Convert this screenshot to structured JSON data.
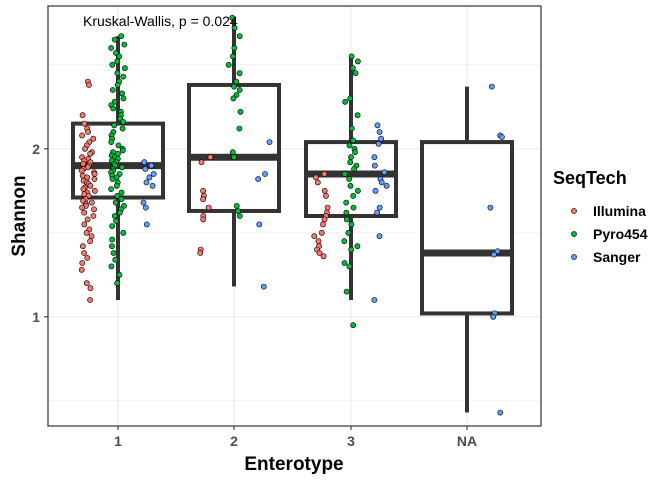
{
  "chart_data": {
    "type": "box",
    "title": "",
    "xlabel": "Enterotype",
    "ylabel": "Shannon",
    "annotation": "Kruskal-Wallis, p = 0.024",
    "categories": [
      "1",
      "2",
      "3",
      "NA"
    ],
    "ylim": [
      0.35,
      2.85
    ],
    "yticks": [
      1,
      2
    ],
    "grid": true,
    "legend": {
      "title": "SeqTech",
      "position": "right",
      "entries": [
        {
          "name": "Illumina",
          "color": "#f8766d"
        },
        {
          "name": "Pyro454",
          "color": "#00ba38"
        },
        {
          "name": "Sanger",
          "color": "#619cff"
        }
      ]
    },
    "boxes": [
      {
        "category": "1",
        "min": 1.1,
        "q1": 1.71,
        "median": 1.9,
        "q3": 2.15,
        "max": 2.67
      },
      {
        "category": "2",
        "min": 1.18,
        "q1": 1.63,
        "median": 1.95,
        "q3": 2.38,
        "max": 2.78
      },
      {
        "category": "3",
        "min": 1.1,
        "q1": 1.6,
        "median": 1.85,
        "q3": 2.04,
        "max": 2.55
      },
      {
        "category": "NA",
        "min": 0.43,
        "q1": 1.02,
        "median": 1.38,
        "q3": 2.04,
        "max": 2.37
      }
    ],
    "series": [
      {
        "name": "Illumina",
        "points": [
          [
            1,
            2.4
          ],
          [
            1,
            2.38
          ],
          [
            1,
            2.2
          ],
          [
            1,
            2.15
          ],
          [
            1,
            2.12
          ],
          [
            1,
            2.1
          ],
          [
            1,
            2.08
          ],
          [
            1,
            2.06
          ],
          [
            1,
            2.04
          ],
          [
            1,
            2.02
          ],
          [
            1,
            2.0
          ],
          [
            1,
            1.98
          ],
          [
            1,
            1.97
          ],
          [
            1,
            1.95
          ],
          [
            1,
            1.94
          ],
          [
            1,
            1.93
          ],
          [
            1,
            1.92
          ],
          [
            1,
            1.91
          ],
          [
            1,
            1.9
          ],
          [
            1,
            1.89
          ],
          [
            1,
            1.88
          ],
          [
            1,
            1.87
          ],
          [
            1,
            1.86
          ],
          [
            1,
            1.85
          ],
          [
            1,
            1.84
          ],
          [
            1,
            1.83
          ],
          [
            1,
            1.82
          ],
          [
            1,
            1.81
          ],
          [
            1,
            1.8
          ],
          [
            1,
            1.79
          ],
          [
            1,
            1.78
          ],
          [
            1,
            1.77
          ],
          [
            1,
            1.76
          ],
          [
            1,
            1.75
          ],
          [
            1,
            1.74
          ],
          [
            1,
            1.73
          ],
          [
            1,
            1.72
          ],
          [
            1,
            1.7
          ],
          [
            1,
            1.69
          ],
          [
            1,
            1.68
          ],
          [
            1,
            1.67
          ],
          [
            1,
            1.66
          ],
          [
            1,
            1.65
          ],
          [
            1,
            1.64
          ],
          [
            1,
            1.62
          ],
          [
            1,
            1.6
          ],
          [
            1,
            1.58
          ],
          [
            1,
            1.55
          ],
          [
            1,
            1.52
          ],
          [
            1,
            1.5
          ],
          [
            1,
            1.48
          ],
          [
            1,
            1.45
          ],
          [
            1,
            1.42
          ],
          [
            1,
            1.38
          ],
          [
            1,
            1.35
          ],
          [
            1,
            1.32
          ],
          [
            1,
            1.28
          ],
          [
            1,
            1.2
          ],
          [
            1,
            1.17
          ],
          [
            1,
            1.1
          ],
          [
            2,
            1.95
          ],
          [
            2,
            1.92
          ],
          [
            2,
            1.75
          ],
          [
            2,
            1.72
          ],
          [
            2,
            1.7
          ],
          [
            2,
            1.65
          ],
          [
            2,
            1.6
          ],
          [
            2,
            1.58
          ],
          [
            2,
            1.4
          ],
          [
            2,
            1.38
          ],
          [
            3,
            1.85
          ],
          [
            3,
            1.83
          ],
          [
            3,
            1.8
          ],
          [
            3,
            1.75
          ],
          [
            3,
            1.72
          ],
          [
            3,
            1.65
          ],
          [
            3,
            1.62
          ],
          [
            3,
            1.6
          ],
          [
            3,
            1.58
          ],
          [
            3,
            1.55
          ],
          [
            3,
            1.5
          ],
          [
            3,
            1.48
          ],
          [
            3,
            1.45
          ],
          [
            3,
            1.42
          ],
          [
            3,
            1.4
          ],
          [
            3,
            1.38
          ],
          [
            3,
            1.36
          ]
        ]
      },
      {
        "name": "Pyro454",
        "points": [
          [
            1,
            2.67
          ],
          [
            1,
            2.65
          ],
          [
            1,
            2.62
          ],
          [
            1,
            2.6
          ],
          [
            1,
            2.57
          ],
          [
            1,
            2.55
          ],
          [
            1,
            2.52
          ],
          [
            1,
            2.5
          ],
          [
            1,
            2.48
          ],
          [
            1,
            2.45
          ],
          [
            1,
            2.43
          ],
          [
            1,
            2.4
          ],
          [
            1,
            2.38
          ],
          [
            1,
            2.35
          ],
          [
            1,
            2.33
          ],
          [
            1,
            2.3
          ],
          [
            1,
            2.28
          ],
          [
            1,
            2.26
          ],
          [
            1,
            2.24
          ],
          [
            1,
            2.22
          ],
          [
            1,
            2.2
          ],
          [
            1,
            2.18
          ],
          [
            1,
            2.16
          ],
          [
            1,
            2.14
          ],
          [
            1,
            2.12
          ],
          [
            1,
            2.1
          ],
          [
            1,
            2.08
          ],
          [
            1,
            2.06
          ],
          [
            1,
            2.04
          ],
          [
            1,
            2.02
          ],
          [
            1,
            2.0
          ],
          [
            1,
            1.99
          ],
          [
            1,
            1.98
          ],
          [
            1,
            1.97
          ],
          [
            1,
            1.96
          ],
          [
            1,
            1.95
          ],
          [
            1,
            1.94
          ],
          [
            1,
            1.93
          ],
          [
            1,
            1.92
          ],
          [
            1,
            1.91
          ],
          [
            1,
            1.9
          ],
          [
            1,
            1.89
          ],
          [
            1,
            1.88
          ],
          [
            1,
            1.87
          ],
          [
            1,
            1.86
          ],
          [
            1,
            1.85
          ],
          [
            1,
            1.84
          ],
          [
            1,
            1.83
          ],
          [
            1,
            1.82
          ],
          [
            1,
            1.8
          ],
          [
            1,
            1.78
          ],
          [
            1,
            1.76
          ],
          [
            1,
            1.74
          ],
          [
            1,
            1.72
          ],
          [
            1,
            1.7
          ],
          [
            1,
            1.68
          ],
          [
            1,
            1.66
          ],
          [
            1,
            1.64
          ],
          [
            1,
            1.62
          ],
          [
            1,
            1.6
          ],
          [
            1,
            1.57
          ],
          [
            1,
            1.54
          ],
          [
            1,
            1.5
          ],
          [
            1,
            1.46
          ],
          [
            1,
            1.42
          ],
          [
            1,
            1.38
          ],
          [
            1,
            1.34
          ],
          [
            1,
            1.3
          ],
          [
            1,
            1.25
          ],
          [
            1,
            1.2
          ],
          [
            2,
            2.78
          ],
          [
            2,
            2.72
          ],
          [
            2,
            2.67
          ],
          [
            2,
            2.6
          ],
          [
            2,
            2.55
          ],
          [
            2,
            2.5
          ],
          [
            2,
            2.45
          ],
          [
            2,
            2.4
          ],
          [
            2,
            2.37
          ],
          [
            2,
            2.35
          ],
          [
            2,
            2.32
          ],
          [
            2,
            2.3
          ],
          [
            2,
            2.22
          ],
          [
            2,
            2.12
          ],
          [
            2,
            1.98
          ],
          [
            2,
            1.95
          ],
          [
            2,
            1.66
          ],
          [
            2,
            1.63
          ],
          [
            2,
            1.6
          ],
          [
            3,
            2.55
          ],
          [
            3,
            2.52
          ],
          [
            3,
            2.48
          ],
          [
            3,
            2.45
          ],
          [
            3,
            2.3
          ],
          [
            3,
            2.28
          ],
          [
            3,
            2.2
          ],
          [
            3,
            2.12
          ],
          [
            3,
            2.05
          ],
          [
            3,
            2.02
          ],
          [
            3,
            2.0
          ],
          [
            3,
            1.98
          ],
          [
            3,
            1.95
          ],
          [
            3,
            1.92
          ],
          [
            3,
            1.9
          ],
          [
            3,
            1.88
          ],
          [
            3,
            1.85
          ],
          [
            3,
            1.82
          ],
          [
            3,
            1.78
          ],
          [
            3,
            1.75
          ],
          [
            3,
            1.72
          ],
          [
            3,
            1.68
          ],
          [
            3,
            1.65
          ],
          [
            3,
            1.62
          ],
          [
            3,
            1.58
          ],
          [
            3,
            1.55
          ],
          [
            3,
            1.5
          ],
          [
            3,
            1.45
          ],
          [
            3,
            1.42
          ],
          [
            3,
            1.4
          ],
          [
            3,
            1.32
          ],
          [
            3,
            1.3
          ],
          [
            3,
            1.15
          ],
          [
            3,
            0.95
          ]
        ]
      },
      {
        "name": "Sanger",
        "points": [
          [
            1,
            1.92
          ],
          [
            1,
            1.9
          ],
          [
            1,
            1.88
          ],
          [
            1,
            1.85
          ],
          [
            1,
            1.83
          ],
          [
            1,
            1.8
          ],
          [
            1,
            1.78
          ],
          [
            1,
            1.68
          ],
          [
            1,
            1.65
          ],
          [
            1,
            1.55
          ],
          [
            2,
            2.04
          ],
          [
            2,
            1.85
          ],
          [
            2,
            1.82
          ],
          [
            2,
            1.55
          ],
          [
            2,
            1.18
          ],
          [
            3,
            2.14
          ],
          [
            3,
            2.1
          ],
          [
            3,
            2.06
          ],
          [
            3,
            2.03
          ],
          [
            3,
            1.95
          ],
          [
            3,
            1.9
          ],
          [
            3,
            1.86
          ],
          [
            3,
            1.82
          ],
          [
            3,
            1.8
          ],
          [
            3,
            1.78
          ],
          [
            3,
            1.75
          ],
          [
            3,
            1.65
          ],
          [
            3,
            1.62
          ],
          [
            3,
            1.48
          ],
          [
            3,
            1.1
          ],
          [
            4,
            2.37
          ],
          [
            4,
            2.08
          ],
          [
            4,
            2.07
          ],
          [
            4,
            1.65
          ],
          [
            4,
            1.39
          ],
          [
            4,
            1.37
          ],
          [
            4,
            1.02
          ],
          [
            4,
            1.0
          ],
          [
            4,
            0.43
          ]
        ]
      }
    ]
  }
}
